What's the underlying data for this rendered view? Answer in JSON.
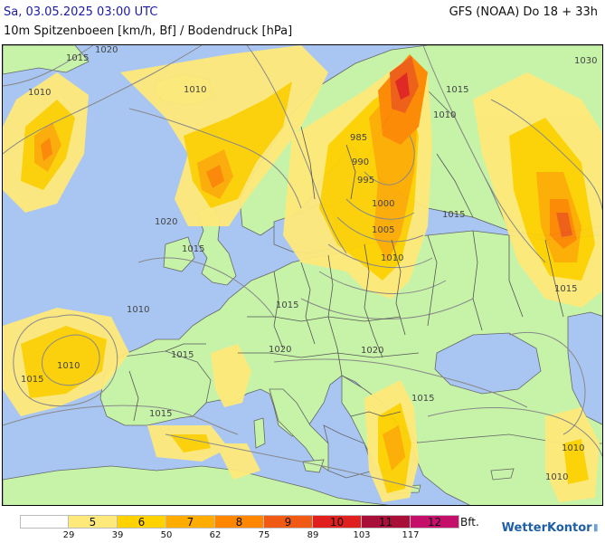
{
  "header": {
    "datetime": "Sa, 03.05.2025 03:00 UTC",
    "model": "GFS (NOAA) Do 18 + 33h",
    "subtitle": "10m Spitzenboeen [km/h, Bf] / Bodendruck [hPa]"
  },
  "isobar_labels": [
    "1015",
    "1020",
    "1010",
    "1010",
    "1015",
    "1010",
    "1030",
    "985",
    "990",
    "995",
    "1000",
    "1005",
    "1010",
    "1015",
    "1020",
    "1015",
    "1015",
    "1010",
    "1015",
    "1010",
    "1015",
    "1020",
    "1020",
    "1015",
    "1015",
    "1015",
    "1010",
    "1010"
  ],
  "legend": {
    "bft_labels": [
      "",
      "5",
      "6",
      "7",
      "8",
      "9",
      "10",
      "11",
      "12"
    ],
    "bft_colors": [
      "#ffffff",
      "#ffe97a",
      "#ffd200",
      "#ffac00",
      "#ff8600",
      "#f15a14",
      "#e01f1f",
      "#a8103a",
      "#c5106b"
    ],
    "kmh_thresholds": [
      "29",
      "39",
      "50",
      "62",
      "75",
      "89",
      "103",
      "117"
    ],
    "unit": "Bft."
  },
  "colors": {
    "sea": "#a9c6f2",
    "land": "#c6f3a8",
    "border": "#555555",
    "isobar": "#888888"
  },
  "brand": {
    "name": "WetterKontor",
    "mark": "⦀"
  }
}
